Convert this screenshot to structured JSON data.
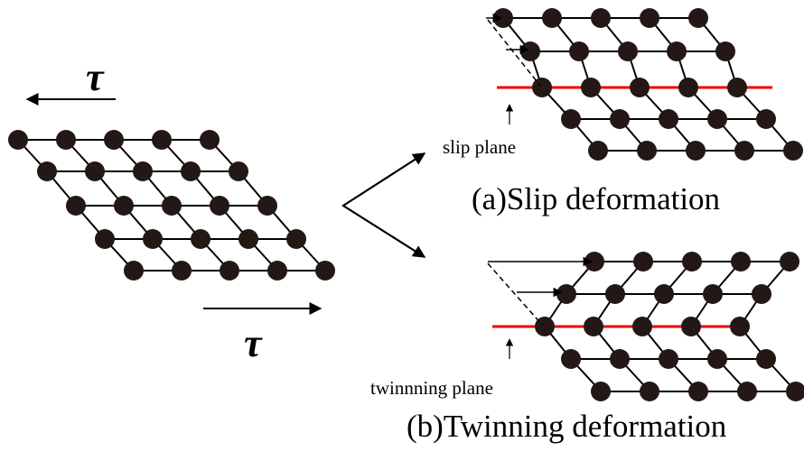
{
  "left_lattice": {
    "stress_top": "τ",
    "stress_bottom": "τ"
  },
  "slip": {
    "plane_label": "slip plane",
    "caption": "(a)Slip deformation"
  },
  "twinning": {
    "plane_label": "twinnning plane",
    "caption": "(b)Twinning deformation"
  }
}
